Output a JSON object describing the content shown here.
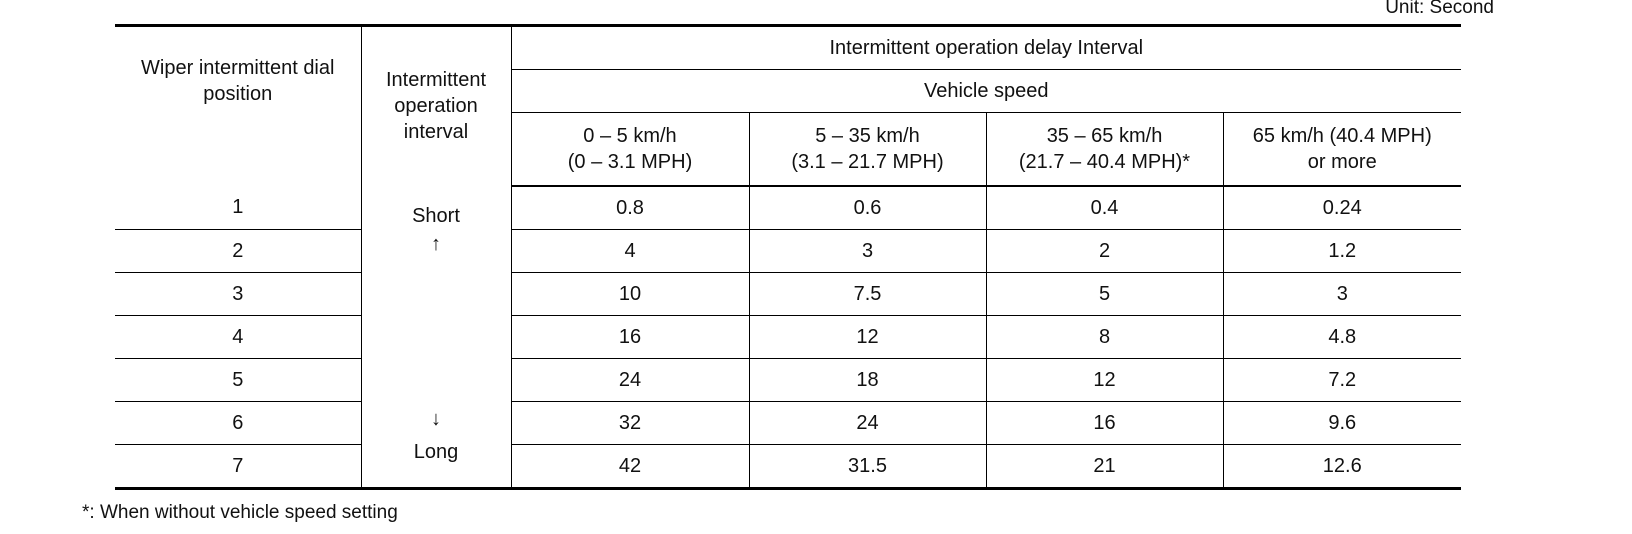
{
  "unit": "Unit: Second",
  "table": {
    "header": {
      "dial_position": "Wiper intermittent dial position",
      "interval": "Intermittent operation interval",
      "delay": "Intermittent operation delay Interval",
      "speed": "Vehicle speed",
      "speed_columns": [
        [
          "0 – 5 km/h",
          "(0 – 3.1 MPH)"
        ],
        [
          "5 – 35 km/h",
          "(3.1 – 21.7 MPH)"
        ],
        [
          "35 – 65 km/h",
          "(21.7 – 40.4 MPH)*"
        ],
        [
          "65 km/h (40.4 MPH)",
          "or more"
        ]
      ]
    },
    "interval_labels": [
      "Short",
      "↑",
      "↓",
      "Long"
    ],
    "rows": [
      [
        1,
        0.8,
        0.6,
        0.4,
        0.24
      ],
      [
        2,
        4,
        3,
        2,
        1.2
      ],
      [
        3,
        10,
        7.5,
        5,
        3
      ],
      [
        4,
        16,
        12,
        8,
        4.8
      ],
      [
        5,
        24,
        18,
        12,
        7.2
      ],
      [
        6,
        32,
        24,
        16,
        9.6
      ],
      [
        7,
        42,
        31.5,
        21,
        12.6
      ]
    ]
  },
  "footnote": "*: When without vehicle speed setting"
}
